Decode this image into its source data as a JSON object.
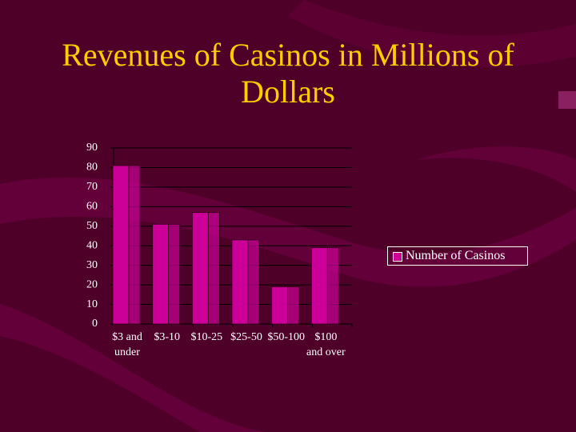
{
  "chart_data": {
    "type": "bar",
    "title": "Revenues of Casinos in Millions of Dollars",
    "categories": [
      "$3 and under",
      "$3-10",
      "$10-25",
      "$25-50",
      "$50-100",
      "$100 and over"
    ],
    "series": [
      {
        "name": "Number of Casinos",
        "color": "#cc0099",
        "values": [
          81,
          51,
          57,
          43,
          19,
          39
        ]
      }
    ],
    "ylim": [
      0,
      90
    ],
    "yticks": [
      0,
      10,
      20,
      30,
      40,
      50,
      60,
      70,
      80,
      90
    ],
    "grid": true,
    "legend": "right"
  }
}
